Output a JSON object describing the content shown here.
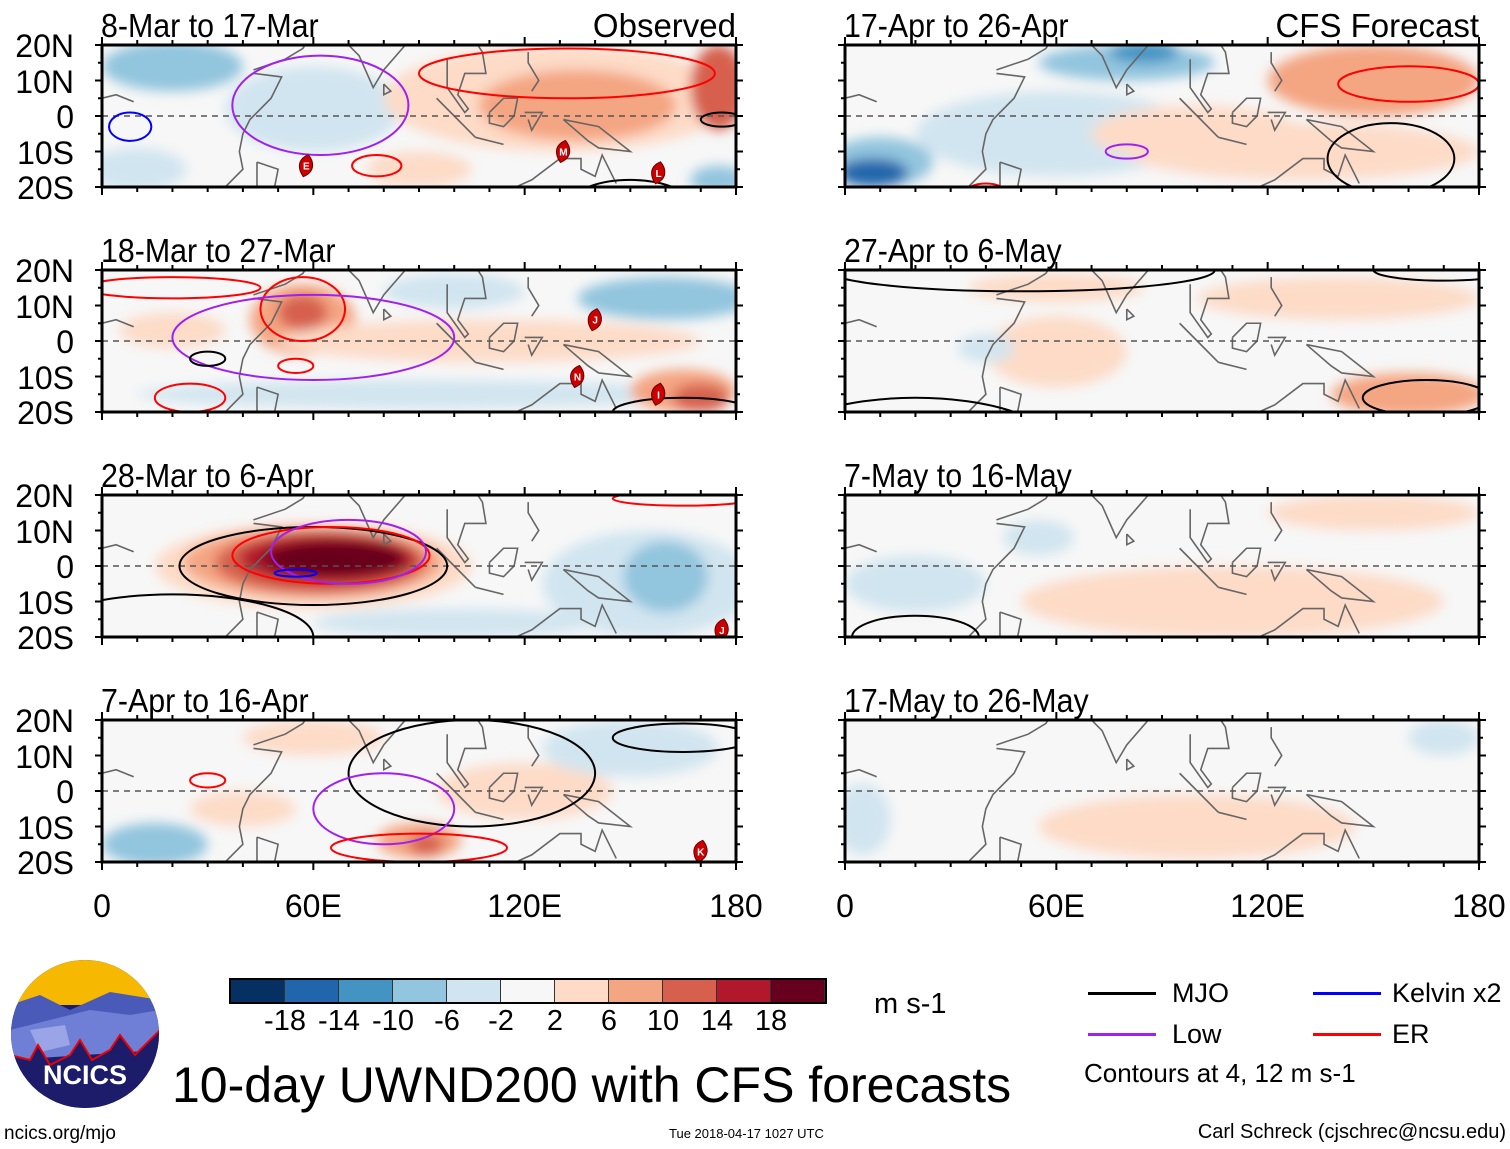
{
  "title": "10-day UWND200 with CFS forecasts",
  "footer": {
    "left": "ncics.org/mjo",
    "center": "Tue 2018-04-17 1027 UTC",
    "right": "Carl Schreck (cjschrec@ncsu.edu)"
  },
  "logo_text": "NCICS",
  "axes": {
    "y_ticks": [
      "20N",
      "10N",
      "0",
      "10S",
      "20S"
    ],
    "x_ticks": [
      "0",
      "60E",
      "120E",
      "180"
    ],
    "lon_range": [
      0,
      180
    ],
    "lat_range": [
      -20,
      20
    ]
  },
  "colorbar": {
    "colors": [
      "#053061",
      "#2166ac",
      "#4393c3",
      "#92c5de",
      "#d1e5f0",
      "#f7f7f7",
      "#fddbc7",
      "#f4a582",
      "#d6604d",
      "#b2182b",
      "#67001f"
    ],
    "labels": [
      "-18",
      "-14",
      "-10",
      "-6",
      "-2",
      "2",
      "6",
      "10",
      "14",
      "18"
    ],
    "units": "m s-1"
  },
  "legend": {
    "items": [
      {
        "label": "MJO",
        "color": "#000000"
      },
      {
        "label": "Kelvin x2",
        "color": "#0000ff"
      },
      {
        "label": "Low",
        "color": "#a020f0"
      },
      {
        "label": "ER",
        "color": "#ff0000"
      }
    ],
    "note": "Contours at 4, 12 m s-1"
  },
  "chart_data": {
    "type": "heatmap",
    "variable": "200-hPa zonal wind anomaly",
    "panels": [
      {
        "title": "8-Mar to 17-Mar",
        "tag": "Observed",
        "shading": [
          [
            20,
            14,
            20,
            7,
            3
          ],
          [
            60,
            2,
            25,
            12,
            4
          ],
          [
            10,
            -15,
            14,
            6,
            4
          ],
          [
            130,
            5,
            50,
            15,
            6
          ],
          [
            135,
            3,
            28,
            10,
            7
          ],
          [
            175,
            8,
            8,
            12,
            8
          ],
          [
            90,
            -15,
            15,
            5,
            6
          ],
          [
            175,
            -18,
            8,
            4,
            3
          ]
        ],
        "contours": [
          [
            62,
            3,
            25,
            14,
            "#a020f0"
          ],
          [
            132,
            12,
            42,
            7,
            "#ff0000"
          ],
          [
            78,
            -14,
            7,
            3,
            "#ff0000"
          ],
          [
            8,
            -3,
            6,
            4,
            "#0000ff"
          ],
          [
            176,
            -1,
            6,
            2,
            "#000000"
          ],
          [
            150,
            -26,
            18,
            8,
            "#000000"
          ]
        ],
        "storms": [
          [
            "E",
            58,
            -14
          ],
          [
            "M",
            131,
            -10
          ],
          [
            "L",
            158,
            -16
          ]
        ]
      },
      {
        "title": "17-Apr to 26-Apr",
        "tag": "CFS Forecast",
        "shading": [
          [
            10,
            -13,
            15,
            7,
            3
          ],
          [
            8,
            -16,
            10,
            4,
            1
          ],
          [
            80,
            15,
            25,
            5,
            3
          ],
          [
            85,
            18,
            10,
            3,
            2
          ],
          [
            60,
            -5,
            40,
            12,
            4
          ],
          [
            150,
            10,
            30,
            10,
            7
          ],
          [
            130,
            -10,
            50,
            8,
            6
          ],
          [
            100,
            -5,
            30,
            8,
            6
          ]
        ],
        "contours": [
          [
            160,
            9,
            20,
            5,
            "#ff0000"
          ],
          [
            155,
            -12,
            18,
            10,
            "#000000"
          ],
          [
            80,
            -10,
            6,
            2,
            "#a020f0"
          ],
          [
            40,
            -22,
            6,
            3,
            "#ff0000"
          ]
        ],
        "storms": []
      },
      {
        "title": "18-Mar to 27-Mar",
        "tag": "",
        "shading": [
          [
            57,
            6,
            15,
            10,
            7
          ],
          [
            57,
            8,
            7,
            5,
            8
          ],
          [
            110,
            0,
            60,
            6,
            6
          ],
          [
            160,
            12,
            25,
            6,
            3
          ],
          [
            100,
            14,
            20,
            5,
            4
          ],
          [
            90,
            -15,
            80,
            4,
            4
          ],
          [
            165,
            -14,
            15,
            6,
            7
          ],
          [
            170,
            -16,
            8,
            4,
            8
          ],
          [
            20,
            3,
            15,
            5,
            6
          ]
        ],
        "contours": [
          [
            57,
            9,
            12,
            9,
            "#ff0000"
          ],
          [
            20,
            15,
            25,
            3,
            "#ff0000"
          ],
          [
            25,
            -16,
            10,
            4,
            "#ff0000"
          ],
          [
            55,
            -7,
            5,
            2,
            "#ff0000"
          ],
          [
            60,
            1,
            40,
            12,
            "#a020f0"
          ],
          [
            30,
            -5,
            5,
            2,
            "#000000"
          ],
          [
            165,
            -20,
            20,
            4,
            "#000000"
          ]
        ],
        "storms": [
          [
            "J",
            140,
            6
          ],
          [
            "N",
            135,
            -10
          ],
          [
            "I",
            158,
            -15
          ]
        ]
      },
      {
        "title": "27-Apr to 6-May",
        "tag": "",
        "shading": [
          [
            65,
            -5,
            8,
            7,
            7
          ],
          [
            60,
            15,
            25,
            4,
            6
          ],
          [
            60,
            -3,
            20,
            10,
            6
          ],
          [
            160,
            -15,
            22,
            6,
            7
          ],
          [
            140,
            12,
            40,
            6,
            6
          ],
          [
            40,
            -2,
            8,
            4,
            4
          ]
        ],
        "contours": [
          [
            165,
            -16,
            18,
            5,
            "#000000"
          ],
          [
            50,
            20,
            55,
            6,
            "#000000"
          ],
          [
            170,
            20,
            20,
            3,
            "#000000"
          ],
          [
            20,
            -30,
            40,
            14,
            "#000000"
          ]
        ],
        "storms": []
      },
      {
        "title": "28-Mar to 6-Apr",
        "tag": "",
        "shading": [
          [
            60,
            0,
            45,
            12,
            6
          ],
          [
            60,
            1,
            37,
            10,
            7
          ],
          [
            62,
            1,
            30,
            9,
            8
          ],
          [
            64,
            2,
            25,
            7,
            9
          ],
          [
            66,
            2,
            20,
            5,
            10
          ],
          [
            155,
            -5,
            30,
            15,
            4
          ],
          [
            160,
            -3,
            12,
            10,
            3
          ],
          [
            100,
            -16,
            40,
            4,
            4
          ]
        ],
        "contours": [
          [
            60,
            0,
            38,
            11,
            "#000000"
          ],
          [
            65,
            3,
            28,
            8,
            "#ff0000"
          ],
          [
            70,
            4,
            22,
            9,
            "#a020f0"
          ],
          [
            55,
            -2,
            6,
            1,
            "#0000ff"
          ],
          [
            20,
            -20,
            40,
            12,
            "#000000"
          ],
          [
            165,
            19,
            20,
            2,
            "#ff0000"
          ]
        ],
        "storms": [
          [
            "J",
            176,
            -18
          ]
        ]
      },
      {
        "title": "7-May to 16-May",
        "tag": "",
        "shading": [
          [
            110,
            -10,
            60,
            10,
            6
          ],
          [
            150,
            15,
            30,
            5,
            6
          ],
          [
            20,
            -5,
            20,
            8,
            4
          ],
          [
            55,
            8,
            10,
            5,
            4
          ]
        ],
        "contours": [
          [
            20,
            -20,
            18,
            6,
            "#000000"
          ]
        ],
        "storms": []
      },
      {
        "title": "7-Apr to 16-Apr",
        "tag": "",
        "shading": [
          [
            15,
            -15,
            15,
            6,
            3
          ],
          [
            90,
            -14,
            12,
            5,
            7
          ],
          [
            92,
            -15,
            5,
            3,
            8
          ],
          [
            120,
            0,
            25,
            8,
            6
          ],
          [
            60,
            15,
            20,
            5,
            6
          ],
          [
            150,
            12,
            25,
            8,
            4
          ],
          [
            40,
            -5,
            15,
            5,
            6
          ]
        ],
        "contours": [
          [
            105,
            5,
            35,
            15,
            "#000000"
          ],
          [
            165,
            15,
            20,
            4,
            "#000000"
          ],
          [
            80,
            -5,
            20,
            10,
            "#a020f0"
          ],
          [
            90,
            -16,
            25,
            4,
            "#ff0000"
          ],
          [
            30,
            3,
            5,
            2,
            "#ff0000"
          ]
        ],
        "storms": [
          [
            "K",
            170,
            -17
          ]
        ]
      },
      {
        "title": "17-May to 26-May",
        "tag": "",
        "shading": [
          [
            100,
            -10,
            45,
            9,
            6
          ],
          [
            5,
            -8,
            8,
            10,
            4
          ],
          [
            170,
            15,
            10,
            5,
            4
          ]
        ],
        "contours": [],
        "storms": []
      }
    ]
  }
}
